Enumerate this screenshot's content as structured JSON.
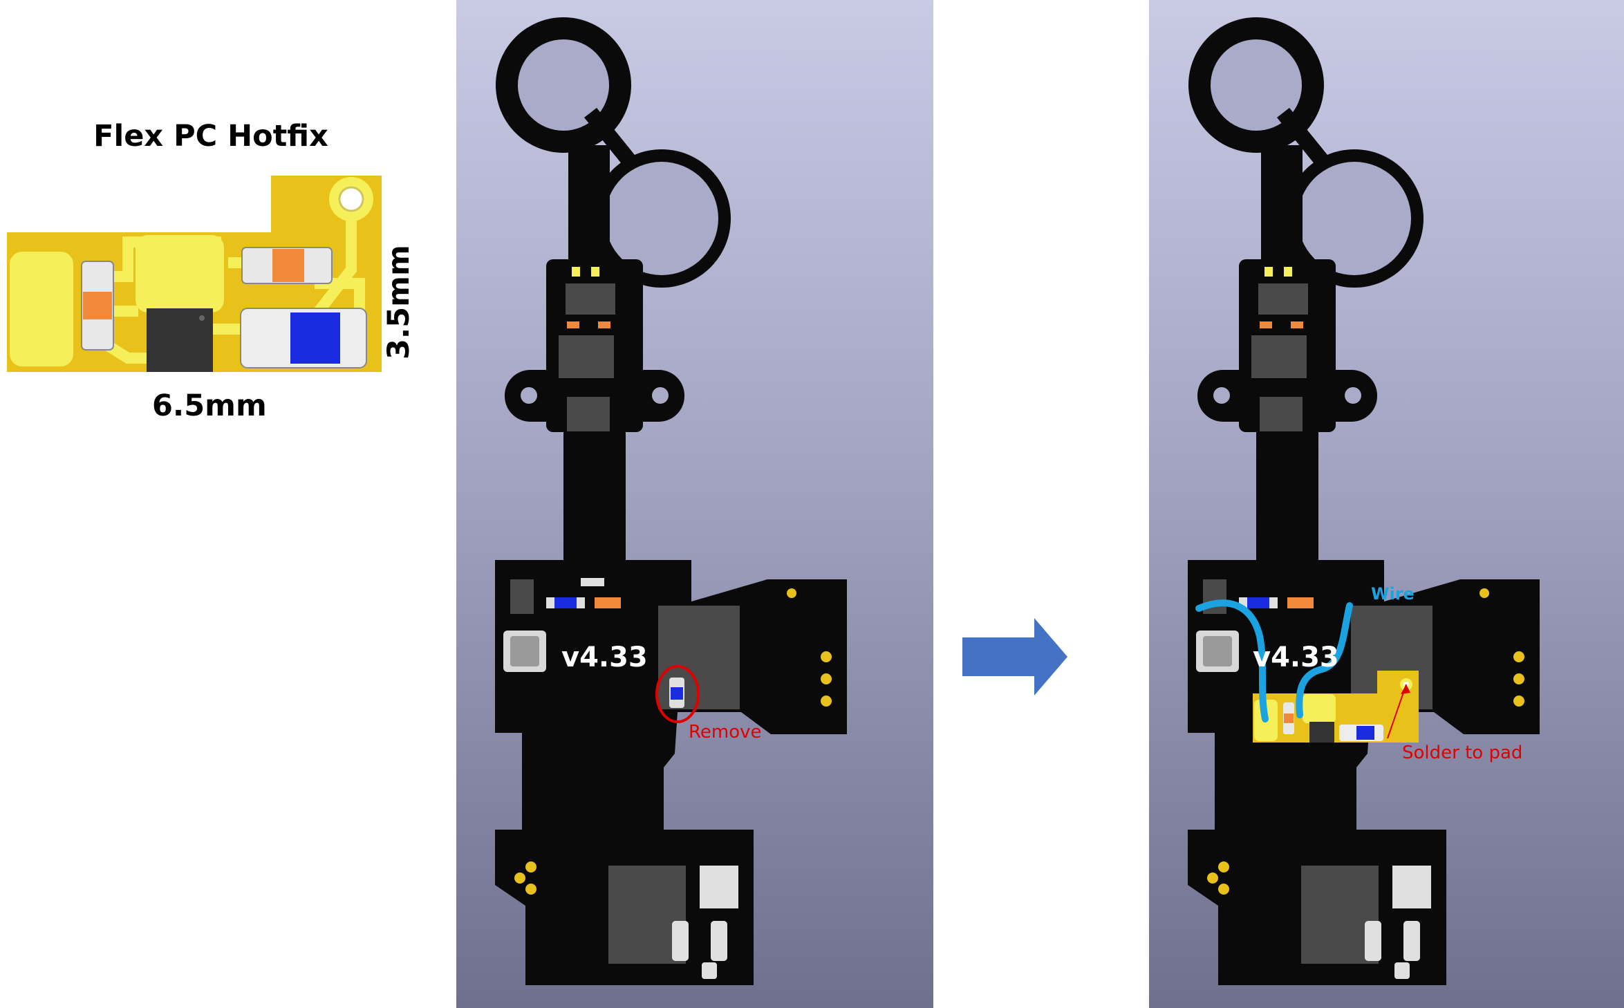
{
  "hotfix": {
    "title": "Flex PC Hotfix",
    "width_label": "6.5mm",
    "height_label": "3.5mm"
  },
  "board_left": {
    "version_label": "v4.33",
    "remove_label": "Remove"
  },
  "board_right": {
    "version_label": "v4.33",
    "wire_label": "Wire",
    "solder_label": "Solder to pad"
  },
  "colors": {
    "pcb": "#0a0a0a",
    "gold": "#e8c21a",
    "pad_yellow": "#f5f05a",
    "arrow": "#4472c4",
    "remove_red": "#e00000",
    "wire_blue": "#1aa3e0",
    "panel_top": "#c9cae4",
    "panel_bottom": "#6e708e"
  }
}
